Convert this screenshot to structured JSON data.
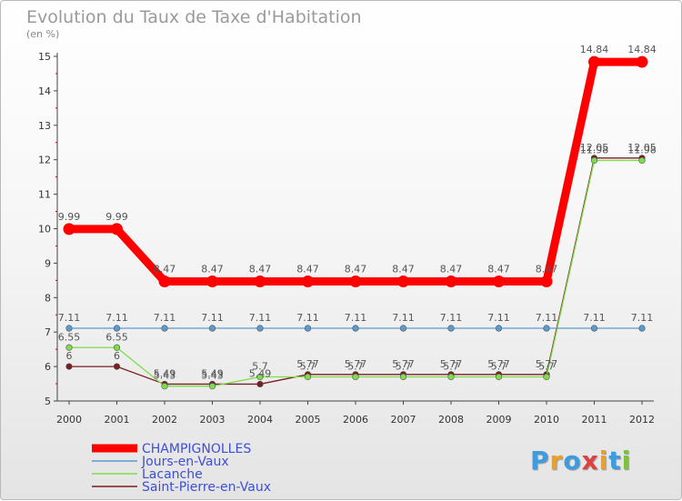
{
  "chart_data": {
    "type": "line",
    "title": "Evolution du Taux de Taxe d'Habitation",
    "subtitle": "(en %)",
    "x": [
      "2000",
      "2001",
      "2002",
      "2003",
      "2004",
      "2005",
      "2006",
      "2007",
      "2008",
      "2009",
      "2010",
      "2011",
      "2012"
    ],
    "ylim": [
      5,
      15
    ],
    "yticks": [
      5,
      6,
      7,
      8,
      9,
      10,
      11,
      12,
      13,
      14,
      15
    ],
    "grid": false,
    "legend_position": "bottom-left",
    "series": [
      {
        "name": "CHAMPIGNOLLES",
        "color": "#ff0000",
        "values": [
          9.99,
          9.99,
          8.47,
          8.47,
          8.47,
          8.47,
          8.47,
          8.47,
          8.47,
          8.47,
          8.47,
          14.84,
          14.84
        ],
        "labels": [
          "9.99",
          "9.99",
          "8.47",
          "8.47",
          "8.47",
          "8.47",
          "8.47",
          "8.47",
          "8.47",
          "8.47",
          "8.47",
          "14.84",
          "14.84"
        ]
      },
      {
        "name": "Jours-en-Vaux",
        "color": "#5a9bd0",
        "values": [
          7.11,
          7.11,
          7.11,
          7.11,
          7.11,
          7.11,
          7.11,
          7.11,
          7.11,
          7.11,
          7.11,
          7.11,
          7.11
        ],
        "labels": [
          "7.11",
          "7.11",
          "7.11",
          "7.11",
          "7.11",
          "7.11",
          "7.11",
          "7.11",
          "7.11",
          "7.11",
          "7.11",
          "7.11",
          "7.11"
        ]
      },
      {
        "name": "Lacanche",
        "color": "#7fdc4a",
        "values": [
          6.55,
          6.55,
          5.43,
          5.43,
          5.7,
          5.7,
          5.7,
          5.7,
          5.7,
          5.7,
          5.7,
          11.98,
          11.98
        ],
        "labels": [
          "6.55",
          "6.55",
          "5.43",
          "5.43",
          "5.7",
          "5.7",
          "5.7",
          "5.7",
          "5.7",
          "5.7",
          "5.7",
          "11.98",
          "11.98"
        ]
      },
      {
        "name": "Saint-Pierre-en-Vaux",
        "color": "#7a1f1f",
        "values": [
          6,
          6,
          5.49,
          5.49,
          5.49,
          5.77,
          5.77,
          5.77,
          5.77,
          5.77,
          5.77,
          12.05,
          12.05
        ],
        "labels": [
          "6",
          "6",
          "5.49",
          "5.49",
          "5.49",
          "5.77",
          "5.77",
          "5.77",
          "5.77",
          "5.77",
          "5.77",
          "12.05",
          "12.05"
        ]
      }
    ]
  },
  "legend_text_color": "#3d4fd6",
  "logo": {
    "letters": [
      "P",
      "r",
      "o",
      "x",
      "i",
      "t",
      "i"
    ],
    "colors": [
      "#3d9be0",
      "#f0a020",
      "#3d9be0",
      "#e04040",
      "#f0a020",
      "#3d9be0",
      "#80c040"
    ]
  }
}
